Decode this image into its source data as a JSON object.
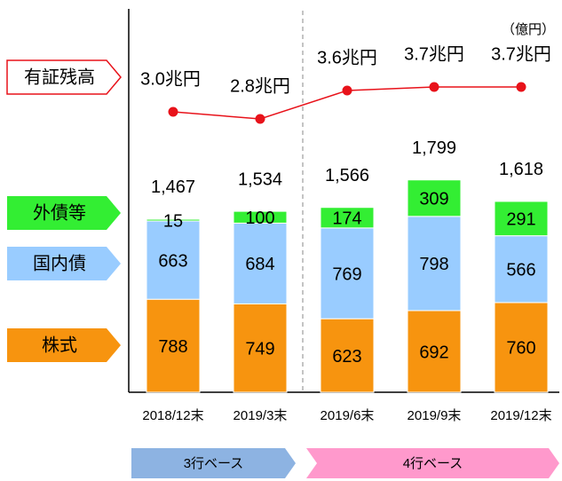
{
  "chart_data": {
    "type": "bar",
    "stacked": true,
    "unit": "（億円）",
    "categories": [
      "2018/12末",
      "2019/3末",
      "2019/6末",
      "2019/9末",
      "2019/12末"
    ],
    "series": [
      {
        "name": "株式",
        "color": "#f7940f",
        "values": [
          788,
          749,
          623,
          692,
          760
        ]
      },
      {
        "name": "国内債",
        "color": "#99ccff",
        "values": [
          663,
          684,
          769,
          798,
          566
        ]
      },
      {
        "name": "外債等",
        "color": "#33ee33",
        "values": [
          15,
          100,
          174,
          309,
          291
        ]
      }
    ],
    "totals": [
      1467,
      1534,
      1566,
      1799,
      1618
    ],
    "total_labels": [
      "1,467",
      "1,534",
      "1,566",
      "1,799",
      "1,618"
    ],
    "line": {
      "name": "有証残高",
      "color": "#e8121a",
      "values": [
        3.0,
        2.8,
        3.6,
        3.7,
        3.7
      ],
      "value_labels": [
        "3.0兆円",
        "2.8兆円",
        "3.6兆円",
        "3.7兆円",
        "3.7兆円"
      ]
    },
    "bases": [
      {
        "label": "3行ベース",
        "color": "#8db3e2"
      },
      {
        "label": "4行ベース",
        "color": "#ff99cc"
      }
    ]
  }
}
